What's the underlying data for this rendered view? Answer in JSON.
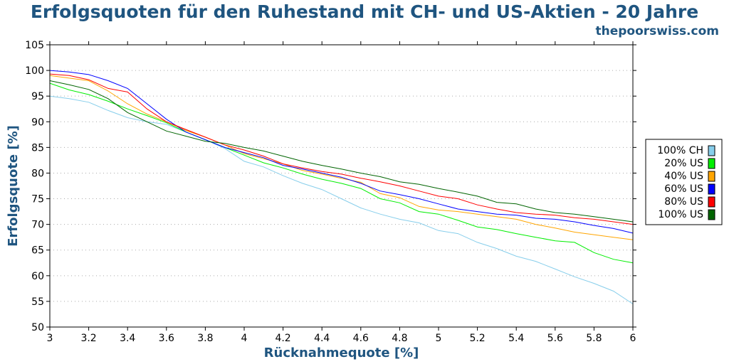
{
  "title": "Erfolgsquoten für den Ruhestand mit CH- und US-Aktien - 20 Jahre",
  "site": "thepoorswiss.com",
  "chart_data": {
    "type": "line",
    "title": "Erfolgsquoten für den Ruhestand mit CH- und US-Aktien - 20 Jahre",
    "xlabel": "Rücknahmequote [%]",
    "ylabel": "Erfolgsquote [%]",
    "xlim": [
      3,
      6
    ],
    "ylim": [
      50,
      105
    ],
    "xticks": [
      3,
      3.2,
      3.4,
      3.6,
      3.8,
      4,
      4.2,
      4.4,
      4.6,
      4.8,
      5,
      5.2,
      5.4,
      5.6,
      5.8,
      6
    ],
    "xtick_labels": [
      "3",
      "3.2",
      "3.4",
      "3.6",
      "3.8",
      "4",
      "4.2",
      "4.4",
      "4.6",
      "4.8",
      "5",
      "5.2",
      "5.4",
      "5.6",
      "5.8",
      "6"
    ],
    "yticks": [
      50,
      55,
      60,
      65,
      70,
      75,
      80,
      85,
      90,
      95,
      100,
      105
    ],
    "grid": "horizontal dotted",
    "legend_position": "right",
    "x": [
      3.0,
      3.1,
      3.2,
      3.3,
      3.4,
      3.5,
      3.6,
      3.7,
      3.8,
      3.9,
      4.0,
      4.1,
      4.2,
      4.3,
      4.4,
      4.5,
      4.6,
      4.7,
      4.8,
      4.9,
      5.0,
      5.1,
      5.2,
      5.3,
      5.4,
      5.5,
      5.6,
      5.7,
      5.8,
      5.9,
      6.0
    ],
    "series": [
      {
        "name": "100% CH",
        "color": "#87ceeb",
        "values": [
          95.0,
          94.5,
          93.8,
          92.2,
          90.8,
          90.0,
          89.5,
          88.0,
          86.5,
          84.8,
          82.3,
          81.2,
          79.5,
          78.0,
          76.8,
          75.0,
          73.2,
          72.0,
          71.0,
          70.3,
          68.8,
          68.2,
          66.5,
          65.3,
          63.8,
          62.8,
          61.3,
          59.8,
          58.5,
          57.0,
          54.5
        ]
      },
      {
        "name": "20% US",
        "color": "#00ee00",
        "values": [
          97.5,
          96.2,
          95.3,
          94.0,
          92.5,
          91.2,
          89.8,
          88.0,
          86.5,
          85.0,
          83.5,
          82.0,
          81.0,
          79.8,
          78.8,
          78.0,
          77.0,
          75.0,
          74.2,
          72.5,
          72.0,
          70.8,
          69.5,
          69.0,
          68.2,
          67.5,
          66.8,
          66.5,
          64.5,
          63.2,
          62.5
        ]
      },
      {
        "name": "40% US",
        "color": "#ffa500",
        "values": [
          99.0,
          98.5,
          98.0,
          96.0,
          93.5,
          91.5,
          90.0,
          88.3,
          87.0,
          85.5,
          83.8,
          82.8,
          81.8,
          80.5,
          79.8,
          79.0,
          78.2,
          76.0,
          75.2,
          73.5,
          72.8,
          72.5,
          72.0,
          71.5,
          71.0,
          70.0,
          69.3,
          68.5,
          68.0,
          67.5,
          67.0
        ]
      },
      {
        "name": "60% US",
        "color": "#0000ff",
        "values": [
          100.0,
          99.7,
          99.2,
          98.0,
          96.5,
          93.5,
          90.5,
          88.0,
          86.5,
          85.0,
          84.0,
          83.0,
          81.5,
          80.8,
          80.0,
          79.2,
          78.0,
          76.5,
          75.8,
          75.0,
          74.0,
          73.0,
          72.5,
          72.0,
          71.8,
          71.2,
          71.0,
          70.5,
          69.8,
          69.2,
          68.3
        ]
      },
      {
        "name": "80% US",
        "color": "#ff0000",
        "values": [
          99.3,
          99.0,
          98.2,
          96.5,
          95.8,
          92.5,
          90.0,
          88.5,
          87.0,
          85.5,
          84.5,
          83.3,
          81.8,
          81.0,
          80.3,
          79.8,
          79.0,
          78.3,
          77.5,
          76.5,
          75.5,
          75.0,
          73.8,
          73.0,
          72.3,
          72.0,
          71.8,
          71.3,
          71.0,
          70.5,
          70.0
        ]
      },
      {
        "name": "100% US",
        "color": "#006400",
        "values": [
          98.0,
          97.2,
          96.3,
          94.5,
          91.8,
          90.0,
          88.2,
          87.2,
          86.2,
          85.8,
          85.0,
          84.3,
          83.3,
          82.3,
          81.5,
          80.8,
          80.0,
          79.3,
          78.3,
          77.8,
          77.0,
          76.3,
          75.5,
          74.3,
          74.0,
          73.0,
          72.3,
          72.0,
          71.5,
          71.0,
          70.5
        ]
      }
    ]
  }
}
